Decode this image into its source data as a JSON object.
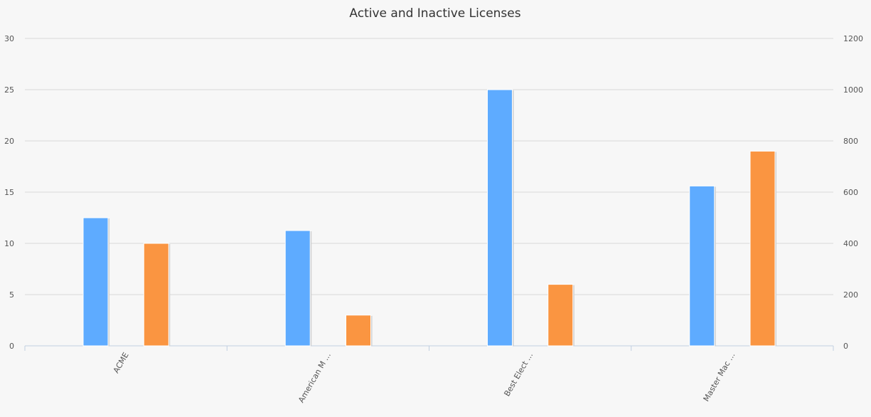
{
  "chart_data": {
    "type": "bar",
    "title": "Active and Inactive Licenses",
    "categories": [
      "ACME",
      "American M ...",
      "Best Elect ...",
      "Master Mac ..."
    ],
    "series": [
      {
        "color": "#5eabff",
        "axis": "left",
        "values": [
          12.5,
          11.25,
          25,
          15.6
        ]
      },
      {
        "color": "#fa9541",
        "axis": "right",
        "values": [
          400,
          120,
          240,
          760
        ]
      }
    ],
    "y_left": {
      "min": 0,
      "max": 30,
      "ticks": [
        0,
        5,
        10,
        15,
        20,
        25,
        30
      ]
    },
    "y_right": {
      "min": 0,
      "max": 1200,
      "ticks": [
        0,
        200,
        400,
        600,
        800,
        1000,
        1200
      ]
    },
    "grid": true,
    "legend": "none"
  }
}
